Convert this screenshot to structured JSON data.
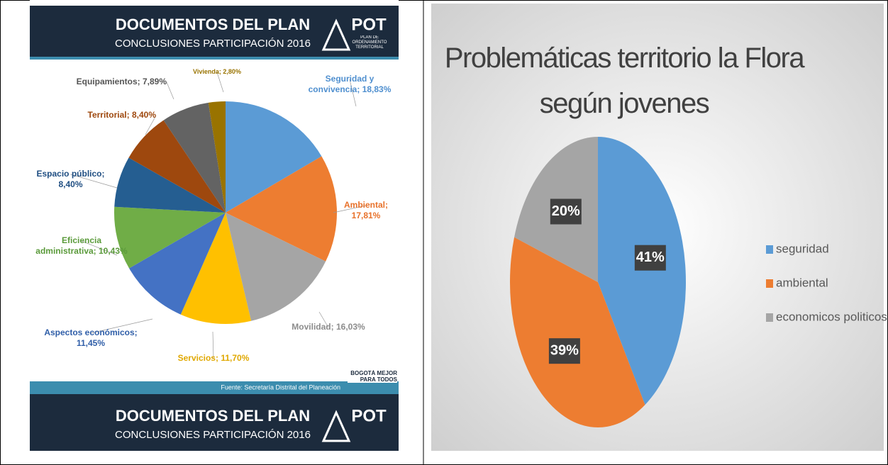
{
  "panel": {
    "heading": "DOCUMENTOS DEL PLAN",
    "subheading": "CONCLUSIONES PARTICIPACIÓN 2016",
    "logo": "POT",
    "logo_sub": "PLAN DE ORDENAMIENTO TERRITORIAL",
    "source": "Fuente: Secretaría Distrital del Planeación",
    "city_logo": "BOGOTÁ MEJOR PARA TODOS"
  },
  "chart_data": [
    {
      "type": "pie",
      "categories": [
        "Seguridad y convivencia;",
        "Ambiental;",
        "Movilidad;",
        "Servicios;",
        "Aspectos económicos;",
        "Eficiencia administrativa;",
        "Espacio público;",
        "Territorial;",
        "Equipamientos;",
        "Vivienda;"
      ],
      "values": [
        18.83,
        17.81,
        16.03,
        11.7,
        11.45,
        10.43,
        8.4,
        8.4,
        7.89,
        2.8
      ],
      "value_labels": [
        "18,83%",
        "17,81%",
        "16,03%",
        "11,70%",
        "11,45%",
        "10,43%",
        "8,40%",
        "8,40%",
        "7,89%",
        "2,80%"
      ],
      "colors": [
        "#5b9bd5",
        "#ed7d31",
        "#a5a5a5",
        "#ffc000",
        "#4472c4",
        "#70ad47",
        "#255e91",
        "#9e480e",
        "#636363",
        "#997300"
      ],
      "label_colors": [
        "#4f8fcf",
        "#e8712a",
        "#8c8c8c",
        "#e0a800",
        "#2f5ea8",
        "#5a9a3a",
        "#1f4e82",
        "#9e480e",
        "#555555",
        "#997300"
      ]
    },
    {
      "type": "pie",
      "title": "Problemáticas territorio la Flora según jovenes",
      "categories": [
        "seguridad",
        "ambiental",
        "economicos politicos"
      ],
      "values": [
        41,
        39,
        20
      ],
      "value_labels": [
        "41%",
        "39%",
        "20%"
      ],
      "colors": [
        "#5b9bd5",
        "#ed7d31",
        "#a5a5a5"
      ],
      "legend": "right"
    }
  ]
}
